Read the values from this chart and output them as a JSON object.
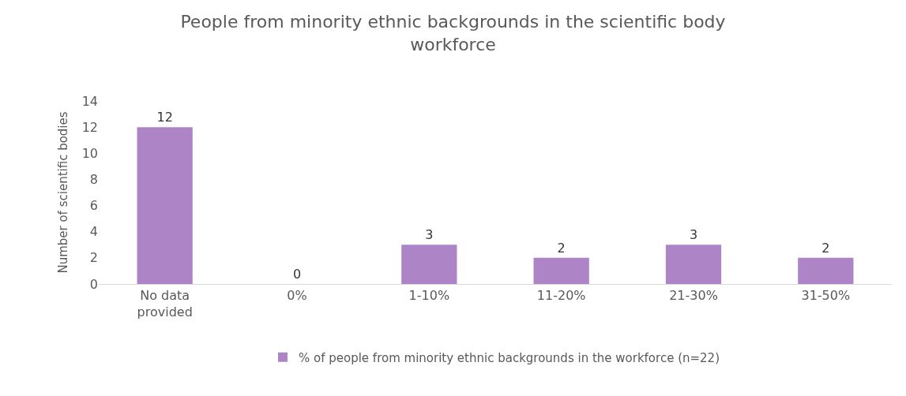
{
  "chart_data": {
    "type": "bar",
    "title": "People from minority ethnic backgrounds in the scientific body workforce",
    "ylabel": "Number of scientific bodies",
    "categories": [
      "No data provided",
      "0%",
      "1-10%",
      "11-20%",
      "21-30%",
      "31-50%"
    ],
    "series": [
      {
        "name": "% of people from minority ethnic backgrounds in the workforce (n=22)",
        "color": "#ad85c7",
        "values": [
          12,
          0,
          3,
          2,
          3,
          2
        ]
      }
    ],
    "ylim": [
      0,
      14
    ],
    "yticks": [
      0,
      2,
      4,
      6,
      8,
      10,
      12,
      14
    ],
    "legend": "bottom",
    "data_labels": true
  }
}
